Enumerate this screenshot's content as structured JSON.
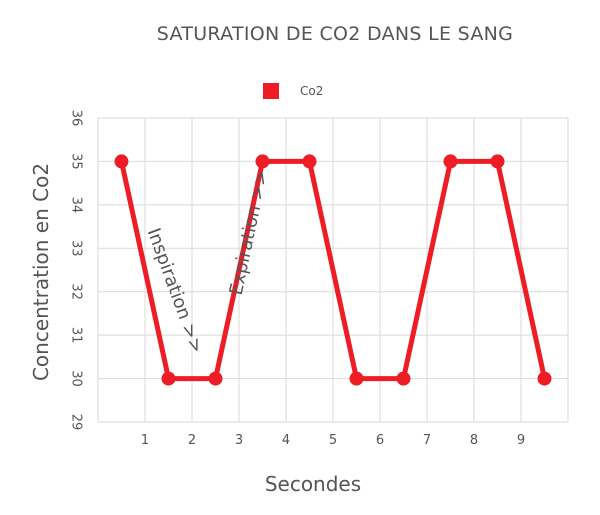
{
  "chart_data": {
    "type": "line",
    "title": "SATURATION DE CO2 DANS LE SANG",
    "xlabel": "Secondes",
    "ylabel": "Concentration en Co2",
    "xlim": [
      0,
      10
    ],
    "ylim": [
      29,
      36
    ],
    "x_ticks": [
      "1",
      "2",
      "3",
      "4",
      "5",
      "6",
      "7",
      "8",
      "9"
    ],
    "y_ticks": [
      "29",
      "30",
      "31",
      "32",
      "33",
      "34",
      "35",
      "36"
    ],
    "grid": true,
    "legend": "top-center",
    "series": [
      {
        "name": "Co2",
        "color": "#ee1c25",
        "x": [
          0.5,
          1.5,
          2.5,
          3.5,
          4.5,
          5.5,
          6.5,
          7.5,
          8.5,
          9.5
        ],
        "y": [
          35,
          30,
          30,
          35,
          35,
          30,
          30,
          35,
          35,
          30
        ]
      }
    ],
    "annotations": [
      {
        "text": "Inspiration >>",
        "x": 1.05,
        "y": 33.4,
        "rotation": 70
      },
      {
        "text": "Expiration >>",
        "x": 3.05,
        "y": 31.9,
        "rotation": -78
      }
    ]
  }
}
